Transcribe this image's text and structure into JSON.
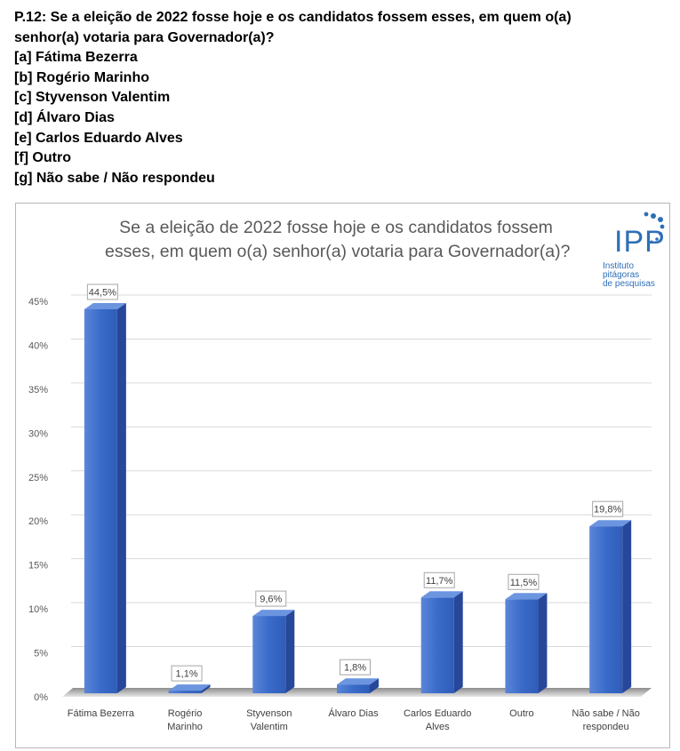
{
  "question": {
    "lines": [
      "P.12: Se a eleição de 2022 fosse hoje e os candidatos fossem esses, em quem o(a)",
      "senhor(a) votaria para Governador(a)?",
      "[a] Fátima Bezerra",
      "[b] Rogério Marinho",
      "[c] Styvenson Valentim",
      "[d] Álvaro Dias",
      "[e] Carlos Eduardo Alves",
      "[f] Outro",
      "[g] Não sabe / Não respondeu"
    ]
  },
  "logo": {
    "text": "IPP",
    "subtitle_line1": "Instituto pitágoras",
    "subtitle_line2": "de pesquisas",
    "color": "#2f6fb6"
  },
  "chart_data": {
    "type": "bar",
    "title_lines": [
      "Se a eleição de 2022 fosse hoje e os candidatos fossem",
      "esses, em quem o(a) senhor(a) votaria para Governador(a)?"
    ],
    "categories": [
      [
        "Fátima Bezerra"
      ],
      [
        "Rogério",
        "Marinho"
      ],
      [
        "Styvenson",
        "Valentim"
      ],
      [
        "Álvaro Dias"
      ],
      [
        "Carlos Eduardo",
        "Alves"
      ],
      [
        "Outro"
      ],
      [
        "Não sabe / Não",
        "respondeu"
      ]
    ],
    "values": [
      44.5,
      1.1,
      9.6,
      1.8,
      11.7,
      11.5,
      19.8
    ],
    "data_labels": [
      "44,5%",
      "1,1%",
      "9,6%",
      "1,8%",
      "11,7%",
      "11,5%",
      "19,8%"
    ],
    "yticks": [
      0,
      5,
      10,
      15,
      20,
      25,
      30,
      35,
      40,
      45
    ],
    "ytick_labels": [
      "0%",
      "5%",
      "10%",
      "15%",
      "20%",
      "25%",
      "30%",
      "35%",
      "40%",
      "45%"
    ],
    "ylim": [
      0,
      45
    ],
    "grid": true,
    "bar_color": "#3a6bc9",
    "xlabel": "",
    "ylabel": ""
  }
}
